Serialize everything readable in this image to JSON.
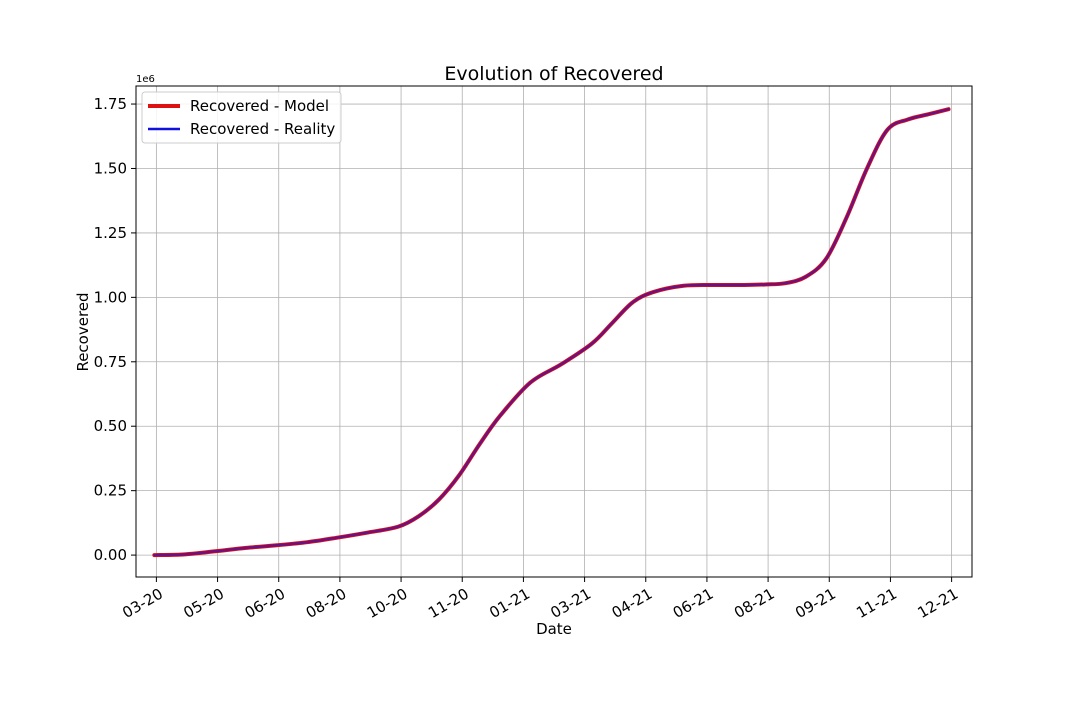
{
  "chart_data": {
    "type": "line",
    "title": "Evolution of Recovered",
    "xlabel": "Date",
    "ylabel": "Recovered",
    "y_offset_label": "1e6",
    "y_scale": 1000000,
    "x_tick_labels": [
      "03-20",
      "05-20",
      "06-20",
      "08-20",
      "10-20",
      "11-20",
      "01-21",
      "03-21",
      "04-21",
      "06-21",
      "08-21",
      "09-21",
      "11-21",
      "12-21"
    ],
    "x_ticks": [
      "2020-03-01",
      "2020-04-30",
      "2020-06-29",
      "2020-08-28",
      "2020-10-27",
      "2020-12-26",
      "2021-02-24",
      "2021-04-25",
      "2021-06-24",
      "2021-08-23",
      "2021-10-22",
      "2021-12-21",
      "2022-02-19",
      "2022-04-20"
    ],
    "xlim": [
      "2020-02-10",
      "2022-05-10"
    ],
    "y_tick_labels": [
      "0.00",
      "0.25",
      "0.50",
      "0.75",
      "1.00",
      "1.25",
      "1.50",
      "1.75"
    ],
    "y_ticks": [
      0,
      250000,
      500000,
      750000,
      1000000,
      1250000,
      1500000,
      1750000
    ],
    "ylim": [
      -85000,
      1820000
    ],
    "grid": true,
    "legend_position": "top-left",
    "series": [
      {
        "name": "Recovered - Model",
        "color": "#dd1111",
        "x": [
          "2020-02-28",
          "2020-03-29",
          "2020-04-28",
          "2020-05-28",
          "2020-06-27",
          "2020-07-27",
          "2020-08-26",
          "2020-09-25",
          "2020-10-24",
          "2020-11-13",
          "2020-12-03",
          "2020-12-23",
          "2021-01-12",
          "2021-02-01",
          "2021-03-03",
          "2021-04-02",
          "2021-05-02",
          "2021-05-22",
          "2021-06-11",
          "2021-07-01",
          "2021-07-31",
          "2021-08-30",
          "2021-09-29",
          "2021-10-19",
          "2021-11-08",
          "2021-11-28",
          "2021-12-18",
          "2022-01-07",
          "2022-01-27",
          "2022-02-16",
          "2022-03-08",
          "2022-03-28",
          "2022-04-17"
        ],
        "values": [
          0,
          3000,
          15000,
          28000,
          38000,
          50000,
          68000,
          88000,
          110000,
          150000,
          215000,
          310000,
          430000,
          540000,
          670000,
          740000,
          820000,
          900000,
          980000,
          1020000,
          1045000,
          1048000,
          1048000,
          1050000,
          1055000,
          1080000,
          1150000,
          1310000,
          1500000,
          1650000,
          1690000,
          1710000,
          1730000
        ]
      },
      {
        "name": "Recovered - Reality",
        "color": "#1111dd",
        "x": [
          "2020-02-28",
          "2020-03-29",
          "2020-04-28",
          "2020-05-28",
          "2020-06-27",
          "2020-07-27",
          "2020-08-26",
          "2020-09-25",
          "2020-10-24",
          "2020-11-13",
          "2020-12-03",
          "2020-12-23",
          "2021-01-12",
          "2021-02-01",
          "2021-03-03",
          "2021-04-02",
          "2021-05-02",
          "2021-05-22",
          "2021-06-11",
          "2021-07-01",
          "2021-07-31",
          "2021-08-30",
          "2021-09-29",
          "2021-10-19",
          "2021-11-08",
          "2021-11-28",
          "2021-12-18",
          "2022-01-07",
          "2022-01-27",
          "2022-02-16",
          "2022-03-08",
          "2022-03-28",
          "2022-04-17"
        ],
        "values": [
          0,
          3000,
          15000,
          28000,
          38000,
          50000,
          68000,
          88000,
          110000,
          150000,
          215000,
          310000,
          430000,
          540000,
          670000,
          740000,
          820000,
          900000,
          980000,
          1020000,
          1045000,
          1048000,
          1048000,
          1050000,
          1055000,
          1080000,
          1150000,
          1310000,
          1500000,
          1650000,
          1690000,
          1710000,
          1730000
        ]
      }
    ]
  }
}
